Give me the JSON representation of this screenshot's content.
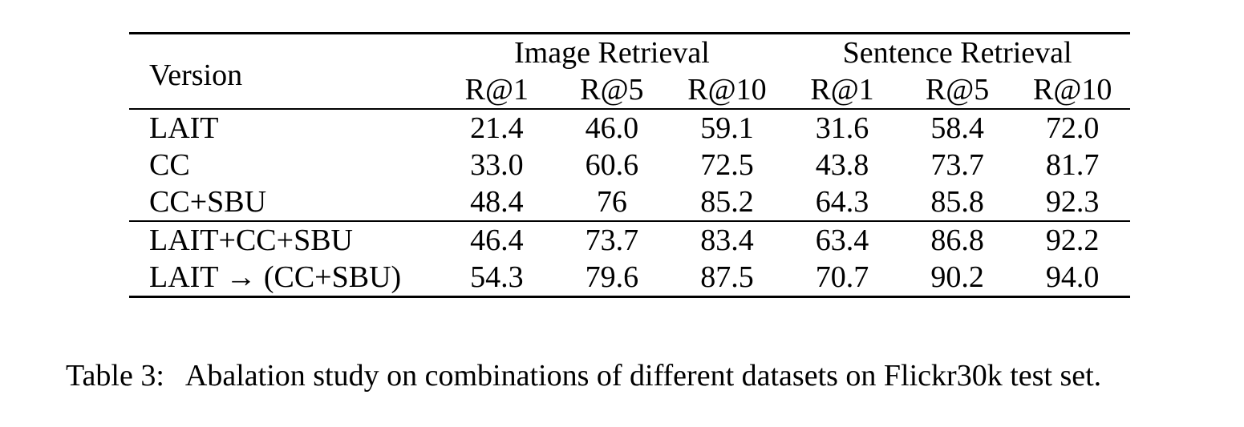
{
  "table": {
    "version_header": "Version",
    "groups": [
      "Image Retrieval",
      "Sentence Retrieval"
    ],
    "metrics": [
      "R@1",
      "R@5",
      "R@10",
      "R@1",
      "R@5",
      "R@10"
    ],
    "section1": [
      {
        "name": "LAIT",
        "values": [
          "21.4",
          "46.0",
          "59.1",
          "31.6",
          "58.4",
          "72.0"
        ]
      },
      {
        "name": "CC",
        "values": [
          "33.0",
          "60.6",
          "72.5",
          "43.8",
          "73.7",
          "81.7"
        ]
      },
      {
        "name": "CC+SBU",
        "values": [
          "48.4",
          "76",
          "85.2",
          "64.3",
          "85.8",
          "92.3"
        ]
      }
    ],
    "section2": [
      {
        "name": "LAIT+CC+SBU",
        "values": [
          "46.4",
          "73.7",
          "83.4",
          "63.4",
          "86.8",
          "92.2"
        ]
      },
      {
        "name": "LAIT → (CC+SBU)",
        "values": [
          "54.3",
          "79.6",
          "87.5",
          "70.7",
          "90.2",
          "94.0"
        ]
      }
    ]
  },
  "caption": {
    "label": "Table 3:",
    "text": "Abalation study on combinations of different datasets on Flickr30k test set."
  }
}
